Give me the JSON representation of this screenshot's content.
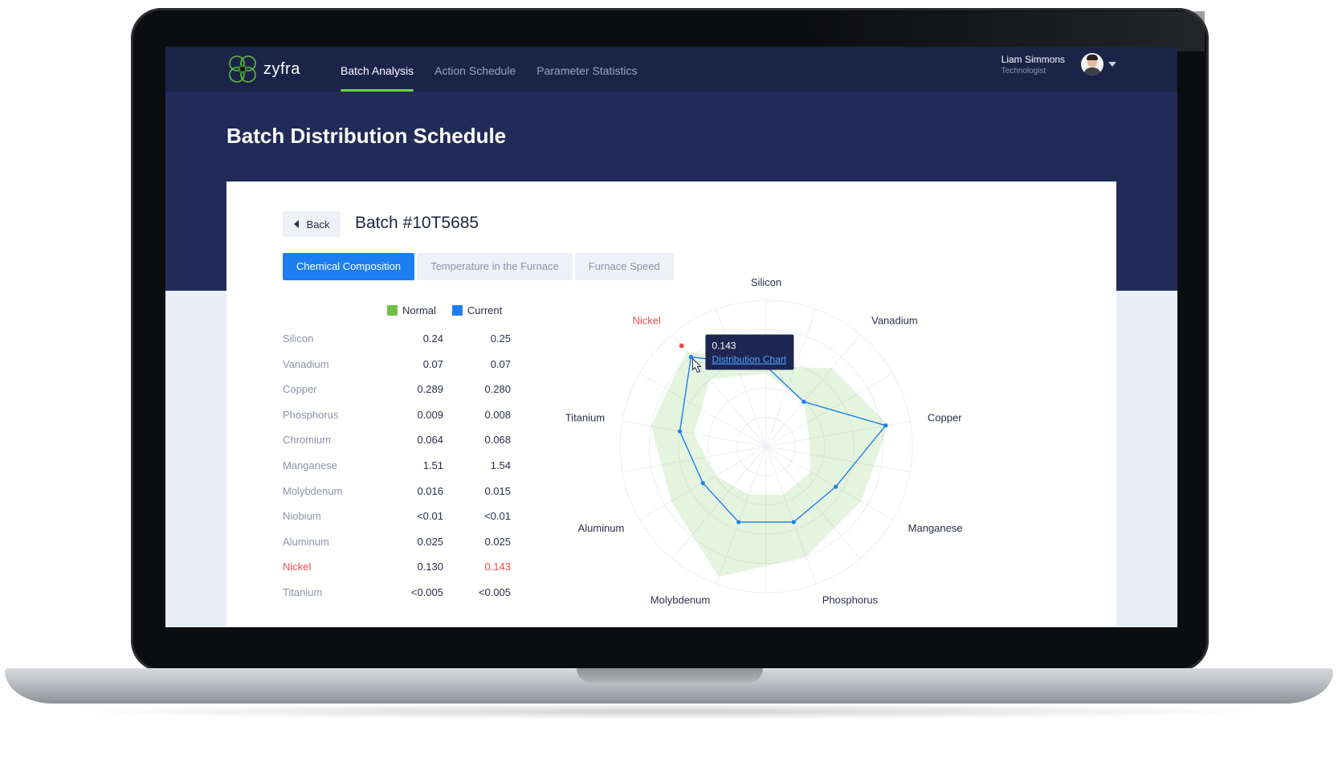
{
  "app": {
    "brand": "zyfra"
  },
  "nav": {
    "items": [
      {
        "label": "Batch Analysis",
        "active": true
      },
      {
        "label": "Action Schedule",
        "active": false
      },
      {
        "label": "Parameter Statistics",
        "active": false
      }
    ]
  },
  "user": {
    "name": "Liam Simmons",
    "role": "Technologist"
  },
  "page": {
    "title": "Batch Distribution Schedule"
  },
  "card": {
    "back_label": "Back",
    "batch_title": "Batch #10T5685",
    "tabs": [
      {
        "label": "Chemical Composition",
        "active": true
      },
      {
        "label": "Temperature in the Furnace",
        "active": false
      },
      {
        "label": "Furnace Speed",
        "active": false
      }
    ],
    "legend": {
      "normal": "Normal",
      "current": "Current"
    }
  },
  "table": {
    "rows": [
      {
        "name": "Silicon",
        "normal": "0.24",
        "current": "0.25",
        "alert": false
      },
      {
        "name": "Vanadium",
        "normal": "0.07",
        "current": "0.07",
        "alert": false
      },
      {
        "name": "Copper",
        "normal": "0.289",
        "current": "0.280",
        "alert": false
      },
      {
        "name": "Phosphorus",
        "normal": "0.009",
        "current": "0.008",
        "alert": false
      },
      {
        "name": "Chromium",
        "normal": "0.064",
        "current": "0.068",
        "alert": false
      },
      {
        "name": "Manganese",
        "normal": "1.51",
        "current": "1.54",
        "alert": false
      },
      {
        "name": "Molybdenum",
        "normal": "0.016",
        "current": "0.015",
        "alert": false
      },
      {
        "name": "Niobium",
        "normal": "<0.01",
        "current": "<0.01",
        "alert": false
      },
      {
        "name": "Aluminum",
        "normal": "0.025",
        "current": "0.025",
        "alert": false
      },
      {
        "name": "Nickel",
        "normal": "0.130",
        "current": "0.143",
        "alert": true
      },
      {
        "name": "Titanium",
        "normal": "<0.005",
        "current": "<0.005",
        "alert": false
      }
    ]
  },
  "colors": {
    "accent": "#1c7ef0",
    "normal": "#6fc04a",
    "current": "#1c7ef0",
    "alert": "#f24b4b",
    "navy": "#222b57"
  },
  "chart_data": {
    "type": "radar",
    "axes": [
      "Silicon",
      "Vanadium",
      "Copper",
      "Manganese",
      "Phosphorus",
      "Molybdenum",
      "Aluminum",
      "Titanium",
      "Nickel"
    ],
    "highlight_axis": "Nickel",
    "rmax": 1.0,
    "series": [
      {
        "name": "Normal",
        "inner": [
          0.5,
          0.4,
          0.3,
          0.35,
          0.35,
          0.35,
          0.4,
          0.5,
          0.6
        ],
        "outer": [
          0.55,
          0.7,
          0.85,
          0.75,
          0.8,
          0.95,
          0.75,
          0.8,
          0.85
        ]
      },
      {
        "name": "Current",
        "values": [
          0.55,
          0.4,
          0.83,
          0.55,
          0.55,
          0.55,
          0.5,
          0.6,
          0.8
        ]
      }
    ],
    "tooltip": {
      "value": "0.143",
      "link": "Distribution Chart"
    }
  }
}
